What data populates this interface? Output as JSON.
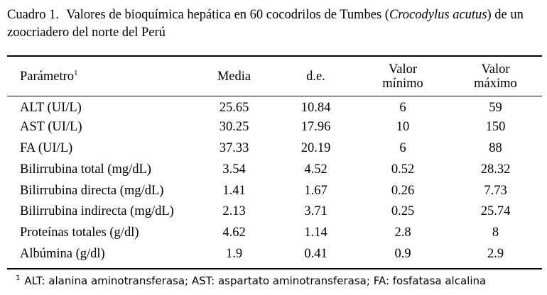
{
  "caption": {
    "number": "Cuadro 1.",
    "text_before": "Valores de bioquímica hepática en 60 cocodrilos de Tumbes (",
    "species": "Crocodylus acutus",
    "text_after": ") de un zoocriadero del norte del Perú"
  },
  "table": {
    "headers": {
      "parametro": "Parámetro",
      "parametro_sup": "1",
      "media": "Media",
      "de": "d.e.",
      "valor_min_line1": "Valor",
      "valor_min_line2": "mínimo",
      "valor_max_line1": "Valor",
      "valor_max_line2": "máximo"
    },
    "rows": [
      {
        "parametro": "ALT (UI/L)",
        "media": "25.65",
        "de": "10.84",
        "min": "6",
        "max": "59"
      },
      {
        "parametro": "AST (UI/L)",
        "media": "30.25",
        "de": "17.96",
        "min": "10",
        "max": "150"
      },
      {
        "parametro": "FA (UI/L)",
        "media": "37.33",
        "de": "20.19",
        "min": "6",
        "max": "88"
      },
      {
        "parametro": "Bilirrubina total (mg/dL)",
        "media": "3.54",
        "de": "4.52",
        "min": "0.52",
        "max": "28.32"
      },
      {
        "parametro": "Bilirrubina directa (mg/dL)",
        "media": "1.41",
        "de": "1.67",
        "min": "0.26",
        "max": "7.73"
      },
      {
        "parametro": "Bilirrubina indirecta (mg/dL)",
        "media": "2.13",
        "de": "3.71",
        "min": "0.25",
        "max": "25.74"
      },
      {
        "parametro": "Proteínas totales (g/dl)",
        "media": "4.62",
        "de": "1.14",
        "min": "2.8",
        "max": "8"
      },
      {
        "parametro": "Albúmina (g/dl)",
        "media": "1.9",
        "de": "0.41",
        "min": "0.9",
        "max": "2.9"
      }
    ]
  },
  "footnote": {
    "marker": "1",
    "text": "ALT: alanina aminotransferasa; AST: aspartato aminotransferasa; FA: fosfatasa alcalina"
  }
}
